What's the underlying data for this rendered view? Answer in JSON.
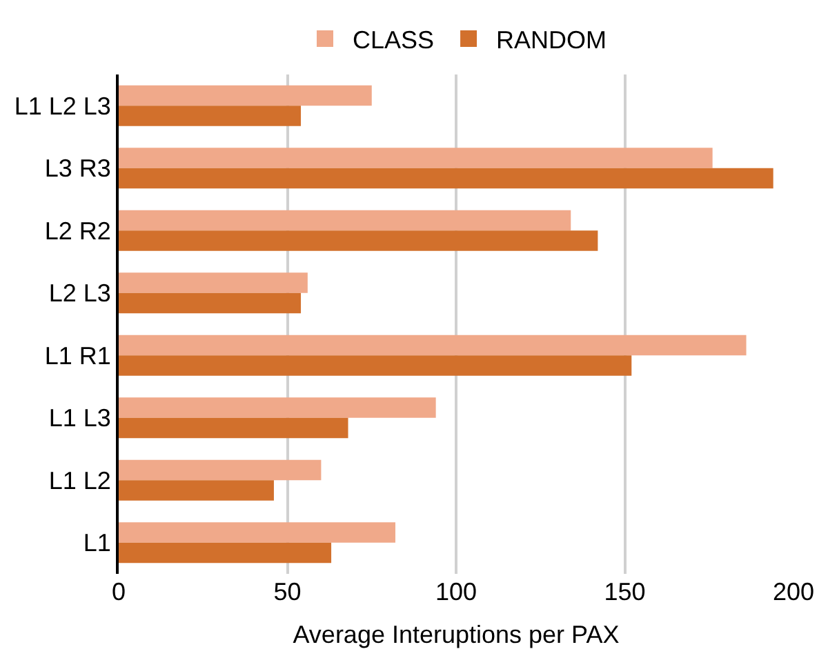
{
  "chart_data": {
    "type": "bar",
    "orientation": "horizontal",
    "xlabel": "Average Interuptions per PAX",
    "categories": [
      "L1 L2 L3",
      "L3 R3",
      "L2 R2",
      "L2 L3",
      "L1 R1",
      "L1 L3",
      "L1 L2",
      "L1"
    ],
    "series": [
      {
        "name": "CLASS",
        "color": "#f0a98a",
        "values": [
          75,
          176,
          134,
          56,
          186,
          94,
          60,
          82
        ]
      },
      {
        "name": "RANDOM",
        "color": "#d2702c",
        "values": [
          54,
          194,
          142,
          54,
          152,
          68,
          46,
          63
        ]
      }
    ],
    "xlim": [
      0,
      200
    ],
    "xticks": [
      0,
      50,
      100,
      150,
      200
    ],
    "grid": "x",
    "legend": "top"
  }
}
